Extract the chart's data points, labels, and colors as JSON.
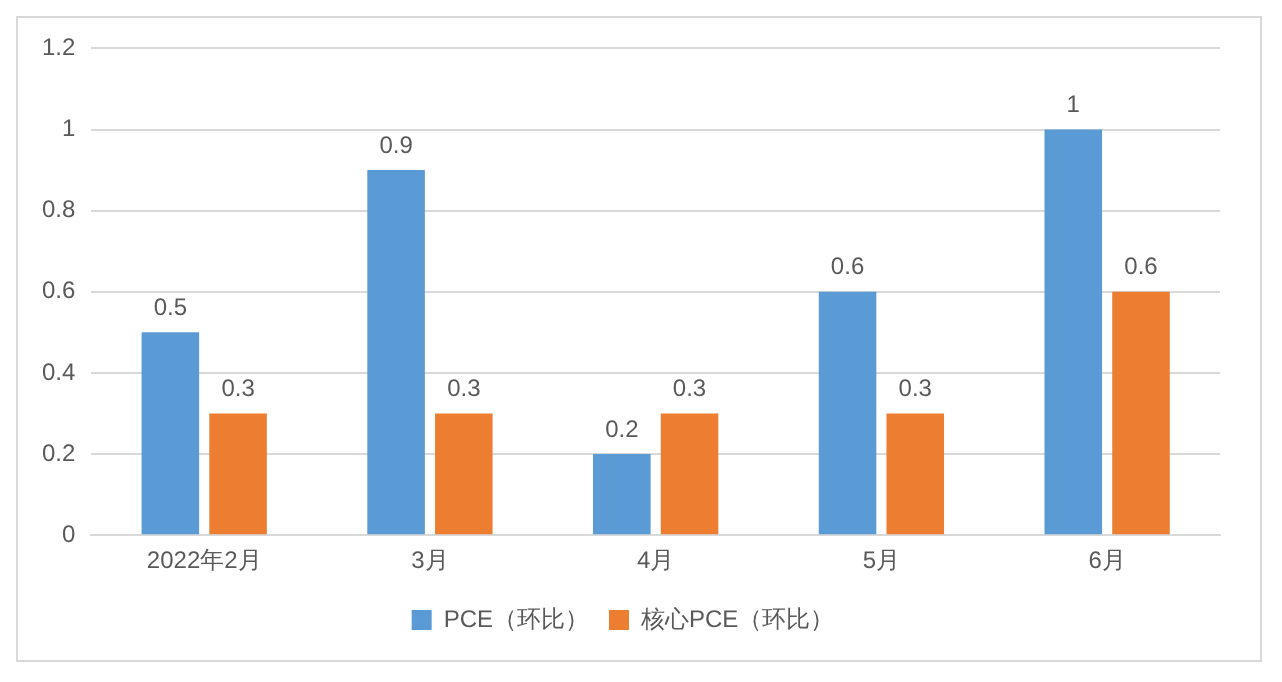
{
  "chart_data": {
    "type": "bar",
    "categories": [
      "2022年2月",
      "3月",
      "4月",
      "5月",
      "6月"
    ],
    "series": [
      {
        "name": "PCE（环比）",
        "color": "#5b9bd5",
        "values": [
          0.5,
          0.9,
          0.2,
          0.6,
          1
        ]
      },
      {
        "name": "核心PCE（环比）",
        "color": "#ed7d31",
        "values": [
          0.3,
          0.3,
          0.3,
          0.3,
          0.6
        ]
      }
    ],
    "ylim": [
      0,
      1.2
    ],
    "yticks": [
      0,
      0.2,
      0.4,
      0.6,
      0.8,
      1,
      1.2
    ],
    "grid": "y",
    "legend": "bottom",
    "data_labels": true
  }
}
